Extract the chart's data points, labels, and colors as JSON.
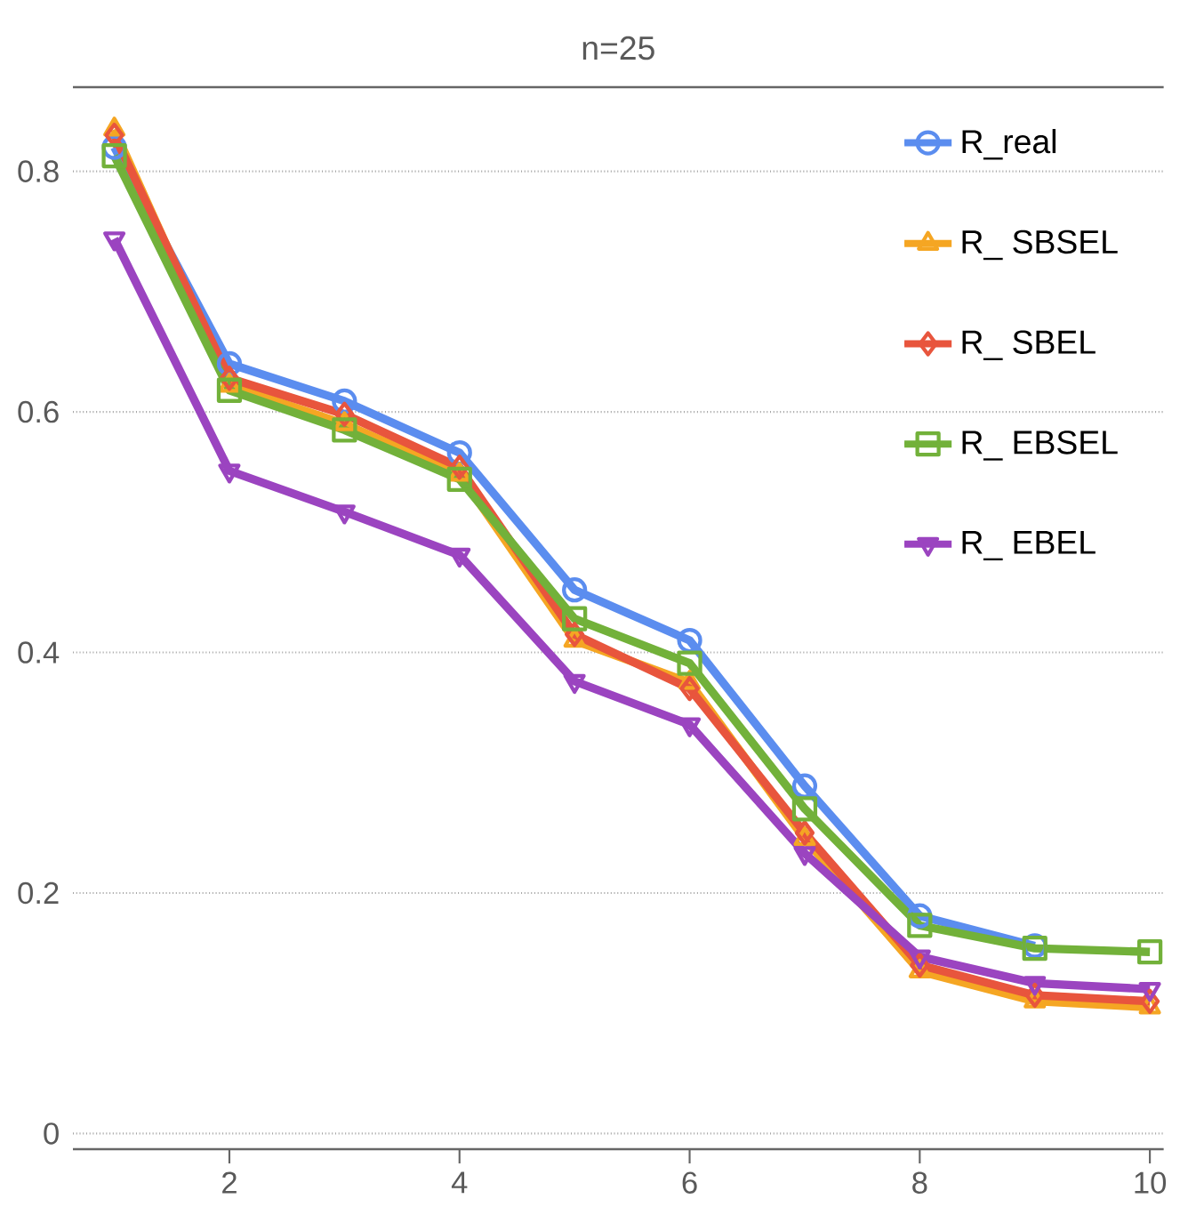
{
  "chart_data": {
    "type": "line",
    "title": "n=25",
    "x": [
      1,
      2,
      3,
      4,
      5,
      6,
      7,
      8,
      9,
      10
    ],
    "xlim": [
      0.64,
      10.12
    ],
    "ylim": [
      -0.013,
      0.87
    ],
    "xticks": [
      2,
      4,
      6,
      8,
      10
    ],
    "yticks": [
      0,
      0.2,
      0.4,
      0.6,
      0.8
    ],
    "grid": "y",
    "legend": "top right",
    "line_style": "solid",
    "series": [
      {
        "name": "R_real",
        "color": "#5b8def",
        "marker": "circle",
        "values": [
          0.82,
          0.64,
          0.609,
          0.566,
          0.452,
          0.41,
          0.289,
          0.181,
          0.156,
          null
        ]
      },
      {
        "name": "R_ SBSEL",
        "color": "#f5a623",
        "marker": "triangle",
        "values": [
          0.835,
          0.622,
          0.59,
          0.548,
          0.41,
          0.375,
          0.245,
          0.135,
          0.11,
          0.105
        ]
      },
      {
        "name": "R_ SBEL",
        "color": "#e8553d",
        "marker": "diamond",
        "values": [
          0.83,
          0.628,
          0.598,
          0.554,
          0.415,
          0.37,
          0.25,
          0.14,
          0.115,
          0.11
        ]
      },
      {
        "name": "R_ EBSEL",
        "color": "#72b13a",
        "marker": "square",
        "values": [
          0.813,
          0.618,
          0.585,
          0.544,
          0.428,
          0.391,
          0.27,
          0.173,
          0.154,
          0.151
        ]
      },
      {
        "name": "R_ EBEL",
        "color": "#9b44c0",
        "marker": "triangle down",
        "values": [
          0.744,
          0.551,
          0.517,
          0.481,
          0.376,
          0.34,
          0.233,
          0.147,
          0.125,
          0.12
        ]
      }
    ]
  }
}
